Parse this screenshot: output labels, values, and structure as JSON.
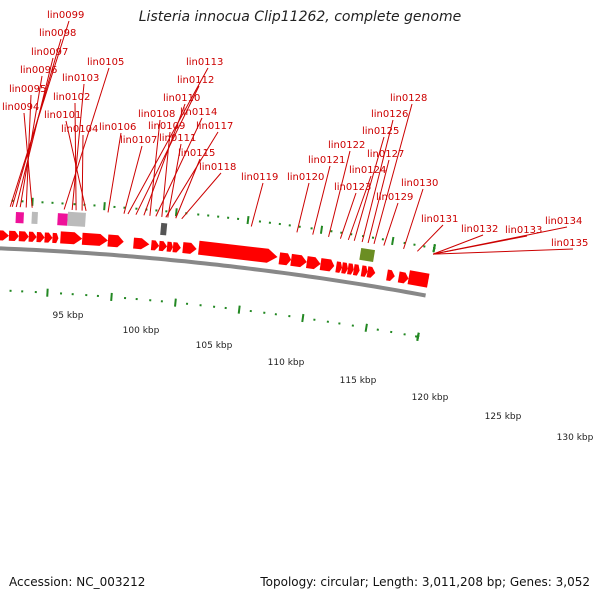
{
  "title": "Listeria innocua Clip11262, complete genome",
  "footer": {
    "accession": "Accession: NC_003212",
    "topology": "Topology: circular; Length: 3,011,208 bp; Genes: 3,052"
  },
  "colors": {
    "cds": "#ff0000",
    "label": "#cc0000",
    "tick": "#228822",
    "backbone": "#888888",
    "magenta": "#ee1199",
    "cyan": "#00e5ee",
    "olive": "#6b8e23",
    "grey": "#bbbbbb",
    "dark_grey": "#555555"
  },
  "scale_labels": [
    "95 kbp",
    "100 kbp",
    "105 kbp",
    "110 kbp",
    "115 kbp",
    "120 kbp",
    "125 kbp",
    "130 kbp"
  ],
  "gene_labels": [
    "lin0099",
    "lin0098",
    "lin0097",
    "lin0096",
    "lin0095",
    "lin0094",
    "lin0105",
    "lin0103",
    "lin0102",
    "lin0101",
    "lin0104",
    "lin0113",
    "lin0112",
    "lin0110",
    "lin0108",
    "lin0114",
    "lin0109",
    "lin0117",
    "lin0106",
    "lin0107",
    "lin0111",
    "lin0115",
    "lin0118",
    "lin0119",
    "lin0120",
    "lin0121",
    "lin0122",
    "lin0123",
    "lin0124",
    "lin0125",
    "lin0126",
    "lin0127",
    "lin0128",
    "lin0129",
    "lin0130",
    "lin0131",
    "lin0132",
    "lin0133",
    "lin0134",
    "lin0135"
  ]
}
